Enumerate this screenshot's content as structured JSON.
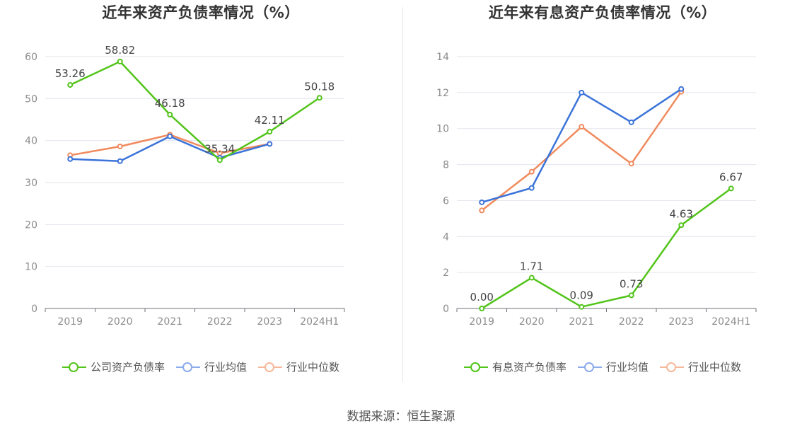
{
  "source": "数据来源：恒生聚源",
  "chart_data": [
    {
      "type": "line",
      "title": "近年来资产负债率情况（%）",
      "categories": [
        "2019",
        "2020",
        "2021",
        "2022",
        "2023",
        "2024H1"
      ],
      "ylim": [
        0,
        60
      ],
      "yticks": [
        0,
        10,
        20,
        30,
        40,
        50,
        60
      ],
      "grid": true,
      "legend_position": "bottom",
      "series": [
        {
          "name": "公司资产负债率",
          "color": "#52c41a",
          "values": [
            53.26,
            58.82,
            46.18,
            35.34,
            42.11,
            50.18
          ],
          "labels": [
            "53.26",
            "58.82",
            "46.18",
            "35.34",
            "42.11",
            "50.18"
          ]
        },
        {
          "name": "行业均值",
          "color": "#3b73d9",
          "legend_color": "#8cabeb",
          "values": [
            35.6,
            35.1,
            41.0,
            35.9,
            39.2,
            null
          ]
        },
        {
          "name": "行业中位数",
          "color": "#f08a5d",
          "legend_color": "#f7b89a",
          "values": [
            36.5,
            38.6,
            41.4,
            37.0,
            39.2,
            null
          ]
        }
      ]
    },
    {
      "type": "line",
      "title": "近年来有息资产负债率情况（%）",
      "categories": [
        "2019",
        "2020",
        "2021",
        "2022",
        "2023",
        "2024H1"
      ],
      "ylim": [
        0,
        14
      ],
      "yticks": [
        0,
        2,
        4,
        6,
        8,
        10,
        12,
        14
      ],
      "grid": true,
      "legend_position": "bottom",
      "series": [
        {
          "name": "有息资产负债率",
          "color": "#52c41a",
          "values": [
            0.0,
            1.71,
            0.09,
            0.73,
            4.63,
            6.67
          ],
          "labels": [
            "0.00",
            "1.71",
            "0.09",
            "0.73",
            "4.63",
            "6.67"
          ]
        },
        {
          "name": "行业均值",
          "color": "#3b73d9",
          "legend_color": "#8cabeb",
          "values": [
            5.9,
            6.7,
            12.0,
            10.35,
            12.2,
            null
          ]
        },
        {
          "name": "行业中位数",
          "color": "#f08a5d",
          "legend_color": "#f7b89a",
          "values": [
            5.45,
            7.6,
            10.1,
            8.05,
            12.05,
            null
          ]
        }
      ]
    }
  ]
}
